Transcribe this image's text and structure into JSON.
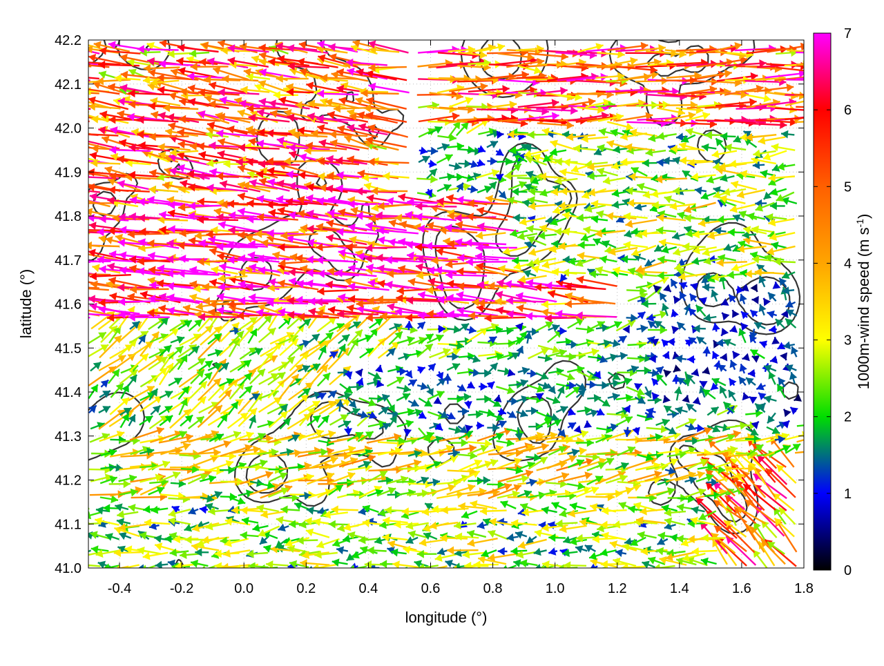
{
  "chart_data": {
    "type": "vector-field",
    "xlabel": "longitude (°)",
    "ylabel": "latitude (°)",
    "xlim": [
      -0.5,
      1.8
    ],
    "ylim": [
      41.0,
      42.2
    ],
    "x_ticks": [
      -0.4,
      -0.2,
      0.0,
      0.2,
      0.4,
      0.6,
      0.8,
      1.0,
      1.2,
      1.4,
      1.6,
      1.8
    ],
    "x_tick_labels": [
      "-0.4",
      "-0.2",
      "0.0",
      "0.2",
      "0.4",
      "0.6",
      "0.8",
      "1.0",
      "1.2",
      "1.4",
      "1.6",
      "1.8"
    ],
    "y_ticks": [
      41.0,
      41.1,
      41.2,
      41.3,
      41.4,
      41.5,
      41.6,
      41.7,
      41.8,
      41.9,
      42.0,
      42.1,
      42.2
    ],
    "y_tick_labels": [
      "41.0",
      "41.1",
      "41.2",
      "41.3",
      "41.4",
      "41.5",
      "41.6",
      "41.7",
      "41.8",
      "41.9",
      "42.0",
      "42.1",
      "42.2"
    ],
    "grid": "dotted",
    "colorbar": {
      "label": "1000m-wind speed (m s",
      "label_sup": "-1",
      "label_end": ")",
      "range": [
        0,
        7
      ],
      "ticks": [
        0,
        1,
        2,
        3,
        4,
        5,
        6,
        7
      ],
      "tick_labels": [
        "0",
        "1",
        "2",
        "3",
        "4",
        "5",
        "6",
        "7"
      ],
      "stops": [
        {
          "v": 0.0,
          "color": "#000000"
        },
        {
          "v": 1.0,
          "color": "#0000ff"
        },
        {
          "v": 2.0,
          "color": "#00dd00"
        },
        {
          "v": 3.0,
          "color": "#ffff00"
        },
        {
          "v": 4.0,
          "color": "#ffa500"
        },
        {
          "v": 5.0,
          "color": "#ff6000"
        },
        {
          "v": 6.0,
          "color": "#ff0000"
        },
        {
          "v": 7.0,
          "color": "#ff00ff"
        }
      ]
    },
    "contour_color": "#333333",
    "wind_regimes": [
      {
        "lon": [
          -0.5,
          0.55
        ],
        "lat": [
          41.85,
          42.2
        ],
        "u": -2.9,
        "v": 0.4,
        "speed": 5.0
      },
      {
        "lon": [
          -0.5,
          1.2
        ],
        "lat": [
          41.55,
          41.85
        ],
        "u": -3.4,
        "v": 0.3,
        "speed": 6.1
      },
      {
        "lon": [
          0.55,
          1.8
        ],
        "lat": [
          42.0,
          42.2
        ],
        "u": 3.1,
        "v": 0.1,
        "speed": 5.0
      },
      {
        "lon": [
          0.9,
          1.8
        ],
        "lat": [
          41.65,
          42.0
        ],
        "u": -1.2,
        "v": 0.0,
        "speed": 2.5
      },
      {
        "lon": [
          1.3,
          1.8
        ],
        "lat": [
          41.35,
          41.65
        ],
        "u": -0.3,
        "v": 0.3,
        "speed": 1.2
      },
      {
        "lon": [
          -0.5,
          0.45
        ],
        "lat": [
          41.3,
          41.55
        ],
        "u": 1.2,
        "v": 1.0,
        "speed": 2.6
      },
      {
        "lon": [
          0.3,
          1.3
        ],
        "lat": [
          41.3,
          41.45
        ],
        "u": 0.6,
        "v": 0.0,
        "speed": 1.6
      },
      {
        "lon": [
          -0.5,
          1.8
        ],
        "lat": [
          41.15,
          41.3
        ],
        "u": 1.6,
        "v": 0.3,
        "speed": 3.0
      },
      {
        "lon": [
          -0.5,
          1.8
        ],
        "lat": [
          41.0,
          41.15
        ],
        "u": -1.3,
        "v": 0.0,
        "speed": 2.4
      },
      {
        "lon": [
          1.55,
          1.8
        ],
        "lat": [
          41.0,
          41.25
        ],
        "u": -1.7,
        "v": 1.7,
        "speed": 4.6
      }
    ]
  }
}
